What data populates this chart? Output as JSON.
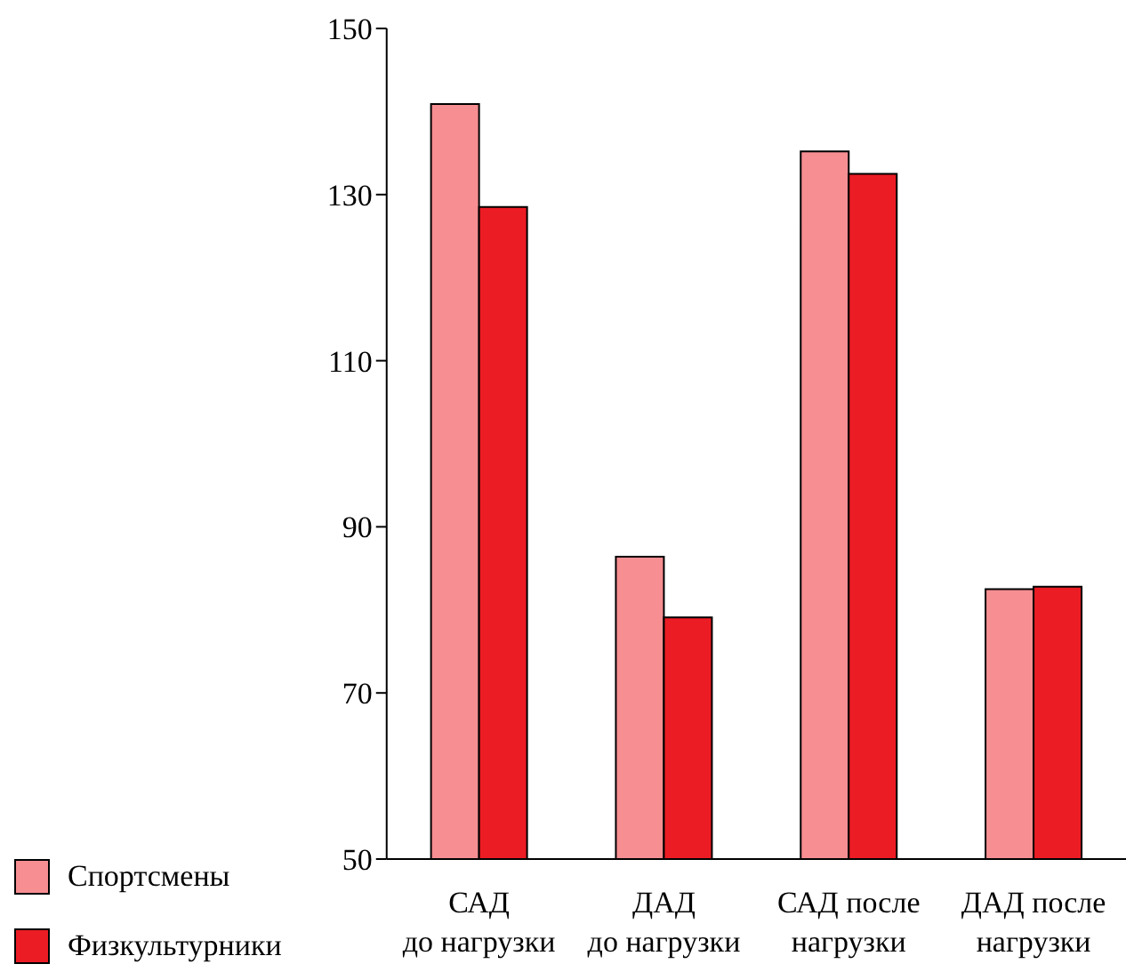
{
  "chart_data": {
    "type": "bar",
    "categories": [
      "САД\nдо нагрузки",
      "ДАД\nдо нагрузки",
      "САД после\nнагрузки",
      "ДАД после\nнагрузки"
    ],
    "series": [
      {
        "name": "Спортсмены",
        "color": "#f68e92",
        "values": [
          140.9,
          86.4,
          135.2,
          82.5
        ]
      },
      {
        "name": "Физкультурники",
        "color": "#ec1c24",
        "values": [
          128.5,
          79.1,
          132.5,
          82.8
        ]
      }
    ],
    "ylim": [
      50,
      150
    ],
    "yticks": [
      50,
      70,
      90,
      110,
      130,
      150
    ],
    "grid": false,
    "legend": "bottom left"
  }
}
